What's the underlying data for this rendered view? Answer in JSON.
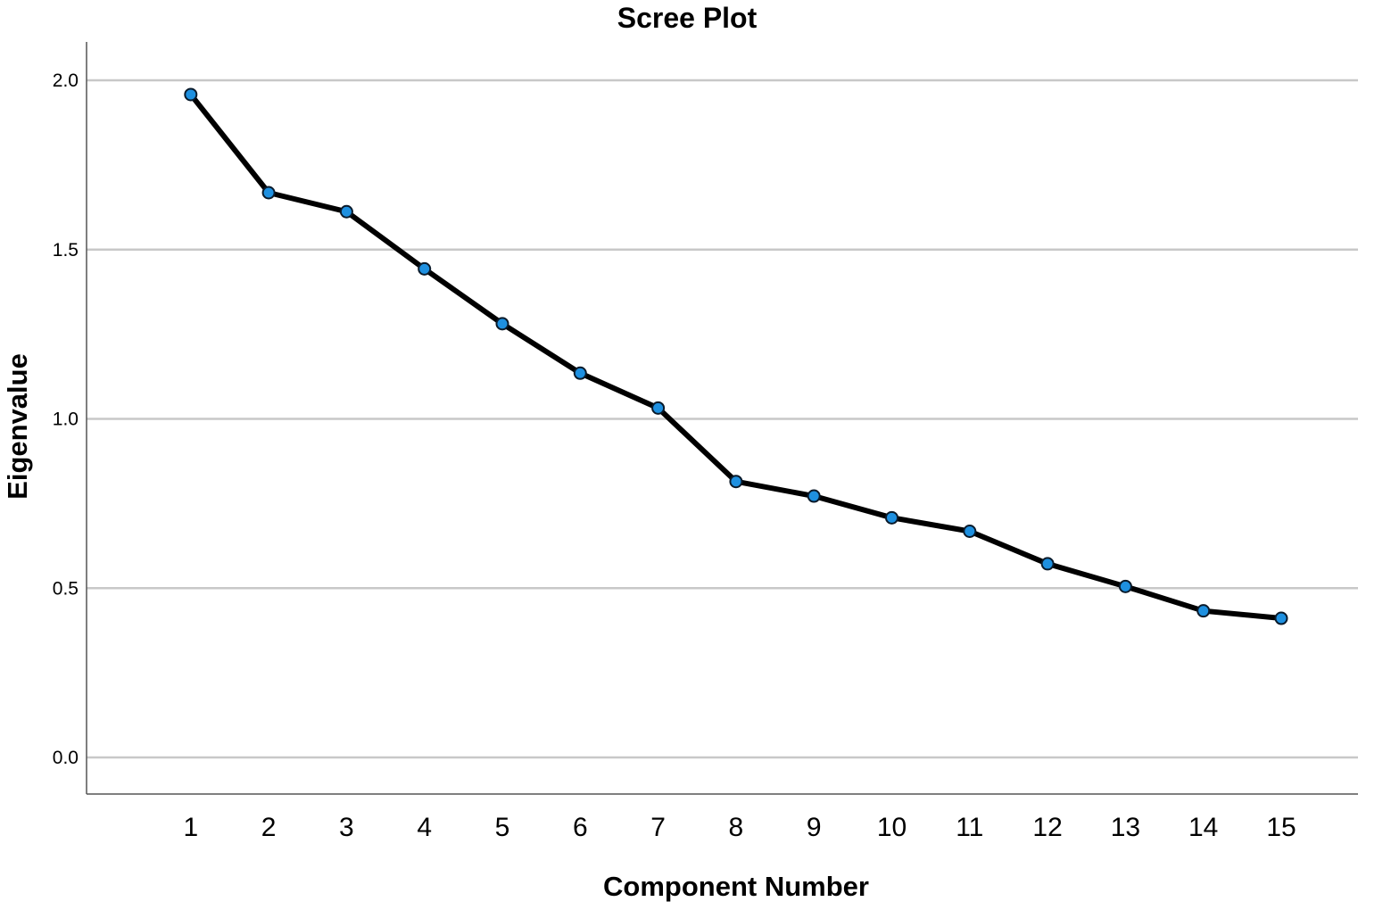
{
  "chart_data": {
    "type": "line",
    "title": "Scree Plot",
    "xlabel": "Component Number",
    "ylabel": "Eigenvalue",
    "x": [
      1,
      2,
      3,
      4,
      5,
      6,
      7,
      8,
      9,
      10,
      11,
      12,
      13,
      14,
      15
    ],
    "x_tick_labels": [
      "1",
      "2",
      "3",
      "4",
      "5",
      "6",
      "7",
      "8",
      "9",
      "10",
      "11",
      "12",
      "13",
      "14",
      "15"
    ],
    "y_tick_labels": [
      "0.0",
      "0.5",
      "1.0",
      "1.5",
      "2.0"
    ],
    "y_ticks": [
      0.0,
      0.5,
      1.0,
      1.5,
      2.0
    ],
    "ylim": [
      -0.11,
      2.11
    ],
    "xlim": [
      0,
      16.4
    ],
    "series": [
      {
        "values": [
          1.958,
          1.668,
          1.612,
          1.443,
          1.281,
          1.135,
          1.032,
          0.815,
          0.772,
          0.708,
          0.668,
          0.572,
          0.505,
          0.433,
          0.411
        ]
      }
    ],
    "grid": "horizontal",
    "colors": {
      "line": "#000000",
      "marker_fill": "#1e90e0",
      "marker_edge": "#0a1a2a",
      "gridline": "#c8c8c8",
      "axis": "#555555"
    }
  }
}
